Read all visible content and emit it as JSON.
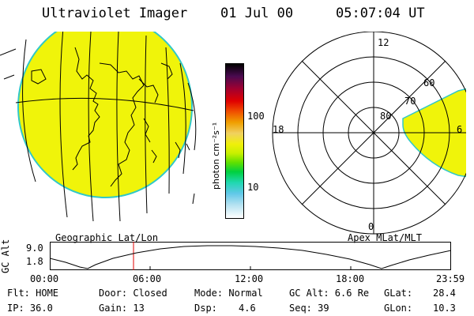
{
  "header": {
    "title": "Ultraviolet Imager",
    "date": "01 Jul 00",
    "time": "05:07:04 UT"
  },
  "colorbar": {
    "unit_label": "photon cm⁻²s⁻¹",
    "ticks": [
      "100",
      "10"
    ]
  },
  "polar": {
    "lat_labels": [
      "80",
      "70",
      "60"
    ],
    "mlt_labels": [
      "12",
      "18",
      "6",
      "0"
    ]
  },
  "geo_label": "Geographic Lat/Lon",
  "apex_label": "Apex MLat/MLT",
  "timeline": {
    "ylabel": "GC Alt",
    "yticks": [
      "9.0",
      "1.8"
    ],
    "xticks": [
      "00:00",
      "06:00",
      "12:00",
      "18:00",
      "23:59"
    ]
  },
  "status": {
    "flt": "Flt: HOME",
    "ip": "IP: 36.0",
    "door": "Door: Closed",
    "gain": "Gain: 13",
    "mode": "Mode: Normal",
    "dsp_label": "Dsp:",
    "dsp_value": "4.6",
    "gcalt": "GC Alt: 6.6 Re",
    "seq": "Seq: 39",
    "glat_label": "GLat:",
    "glat_value": "28.4",
    "glon_label": "GLon:",
    "glon_value": "10.3"
  },
  "colors": {
    "fill": "#f0f40a",
    "limb": "#30c8c8",
    "cursor": "#e00000"
  }
}
